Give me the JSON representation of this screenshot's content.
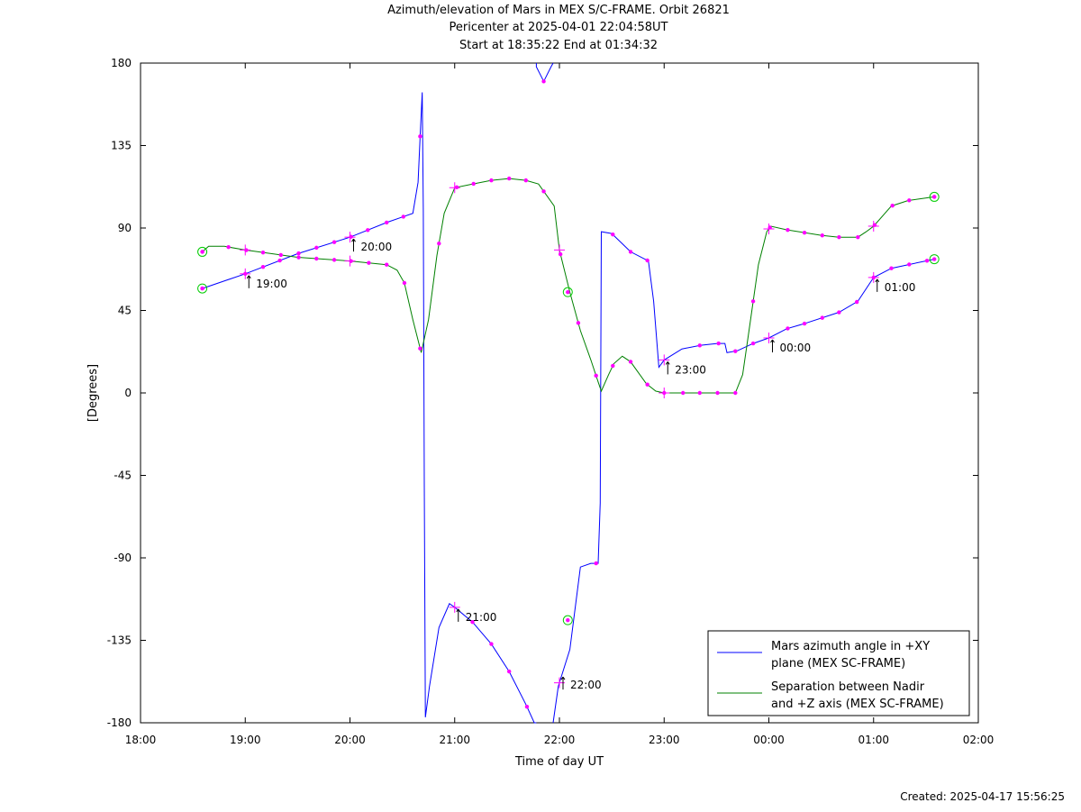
{
  "chart_data": {
    "type": "line",
    "title": "Azimuth/elevation of Mars in MEX S/C-FRAME.  Orbit 26821",
    "subtitle_1": "Pericenter at 2025-04-01 22:04:58UT",
    "subtitle_2": "Start at 18:35:22 End at 01:34:32",
    "xlabel": "Time of day UT",
    "ylabel": "[Degrees]",
    "xlim": [
      0,
      8
    ],
    "ylim": [
      -180,
      180
    ],
    "x_ticks": [
      {
        "v": 0,
        "label": "18:00"
      },
      {
        "v": 1,
        "label": "19:00"
      },
      {
        "v": 2,
        "label": "20:00"
      },
      {
        "v": 3,
        "label": "21:00"
      },
      {
        "v": 4,
        "label": "22:00"
      },
      {
        "v": 5,
        "label": "23:00"
      },
      {
        "v": 6,
        "label": "00:00"
      },
      {
        "v": 7,
        "label": "01:00"
      },
      {
        "v": 8,
        "label": "02:00"
      }
    ],
    "y_ticks": [
      {
        "v": 180,
        "label": "180"
      },
      {
        "v": 135,
        "label": "135"
      },
      {
        "v": 90,
        "label": "90"
      },
      {
        "v": 45,
        "label": "45"
      },
      {
        "v": 0,
        "label": "0"
      },
      {
        "v": -45,
        "label": "-45"
      },
      {
        "v": -90,
        "label": "-90"
      },
      {
        "v": -135,
        "label": "-135"
      },
      {
        "v": -180,
        "label": "-180"
      }
    ],
    "legend_position": "bottom-right",
    "colors": {
      "azimuth": "#0000ff",
      "separation": "#008000",
      "markers": "#ff00ff",
      "endpoints": "#00cc00"
    },
    "series": [
      {
        "name_line1": "Mars azimuth angle in +XY",
        "name_line2": "plane (MEX SC-FRAME)",
        "color": "#0000ff",
        "points": [
          [
            0.59,
            57
          ],
          [
            1,
            65
          ],
          [
            1.5,
            76
          ],
          [
            2,
            85
          ],
          [
            2.35,
            93
          ],
          [
            2.5,
            96
          ],
          [
            2.6,
            98
          ],
          [
            2.65,
            115
          ],
          [
            2.67,
            140
          ],
          [
            2.69,
            164
          ],
          [
            2.7,
            100
          ],
          [
            2.71,
            -50
          ],
          [
            2.72,
            -177
          ],
          [
            2.76,
            -160
          ],
          [
            2.85,
            -128
          ],
          [
            2.95,
            -115
          ],
          [
            3,
            -117
          ],
          [
            3.17,
            -125
          ],
          [
            3.35,
            -137
          ],
          [
            3.52,
            -152
          ],
          [
            3.68,
            -170
          ],
          [
            3.76,
            -180
          ],
          [
            3.78,
            178
          ],
          [
            3.85,
            170
          ],
          [
            3.92,
            178
          ],
          [
            3.94,
            -180
          ],
          [
            3.99,
            -160
          ],
          [
            4.1,
            -140
          ],
          [
            4.2,
            -95
          ],
          [
            4.3,
            -93
          ],
          [
            4.37,
            -93
          ],
          [
            4.39,
            -60
          ],
          [
            4.4,
            88
          ],
          [
            4.5,
            87
          ],
          [
            4.68,
            77
          ],
          [
            4.85,
            72
          ],
          [
            4.9,
            50
          ],
          [
            4.95,
            14
          ],
          [
            5,
            18
          ],
          [
            5.17,
            24
          ],
          [
            5.35,
            26
          ],
          [
            5.51,
            27
          ],
          [
            5.58,
            27
          ],
          [
            5.6,
            22
          ],
          [
            5.7,
            23
          ],
          [
            5.85,
            27
          ],
          [
            6,
            30
          ],
          [
            6.17,
            35
          ],
          [
            6.35,
            38
          ],
          [
            6.67,
            44
          ],
          [
            6.85,
            50
          ],
          [
            7,
            63
          ],
          [
            7.17,
            68
          ],
          [
            7.33,
            70
          ],
          [
            7.58,
            73
          ]
        ],
        "marker_x": [
          0.59,
          1,
          1.17,
          1.33,
          1.51,
          1.68,
          1.85,
          2.01,
          2.17,
          2.35,
          2.51,
          2.67,
          3.17,
          3.35,
          3.52,
          3.69,
          3.85,
          4.35,
          4.51,
          4.68,
          4.84,
          5.34,
          5.52,
          5.68,
          5.85,
          6.18,
          6.34,
          6.51,
          6.67,
          6.84,
          7,
          7.17,
          7.34,
          7.51
        ],
        "time_labels": [
          {
            "x": 1,
            "y": 65,
            "label": "19:00"
          },
          {
            "x": 2,
            "y": 85,
            "label": "20:00"
          },
          {
            "x": 3,
            "y": -117,
            "label": "21:00"
          },
          {
            "x": 4,
            "y": -154,
            "label": "22:00"
          },
          {
            "x": 5,
            "y": 18,
            "label": "23:00"
          },
          {
            "x": 6,
            "y": 30,
            "label": "00:00"
          },
          {
            "x": 7,
            "y": 63,
            "label": "01:00"
          }
        ],
        "endpoints": [
          [
            0.59,
            57
          ],
          [
            7.58,
            73
          ]
        ]
      },
      {
        "name_line1": "Separation between Nadir",
        "name_line2": "and +Z axis (MEX SC-FRAME)",
        "color": "#008000",
        "points": [
          [
            0.59,
            77
          ],
          [
            0.65,
            80
          ],
          [
            0.8,
            80
          ],
          [
            1,
            78
          ],
          [
            1.5,
            74
          ],
          [
            2,
            72
          ],
          [
            2.35,
            70
          ],
          [
            2.45,
            67
          ],
          [
            2.52,
            60
          ],
          [
            2.6,
            40
          ],
          [
            2.68,
            22
          ],
          [
            2.75,
            40
          ],
          [
            2.83,
            75
          ],
          [
            2.9,
            98
          ],
          [
            3,
            112
          ],
          [
            3.17,
            114
          ],
          [
            3.35,
            116
          ],
          [
            3.52,
            117
          ],
          [
            3.68,
            116
          ],
          [
            3.8,
            114
          ],
          [
            3.95,
            102
          ],
          [
            4,
            78
          ],
          [
            4.1,
            55
          ],
          [
            4.2,
            34
          ],
          [
            4.3,
            18
          ],
          [
            4.37,
            6
          ],
          [
            4.4,
            1
          ],
          [
            4.47,
            10
          ],
          [
            4.52,
            16
          ],
          [
            4.6,
            20
          ],
          [
            4.68,
            17
          ],
          [
            4.83,
            5
          ],
          [
            4.92,
            1
          ],
          [
            5,
            0
          ],
          [
            5.5,
            0
          ],
          [
            5.68,
            0
          ],
          [
            5.75,
            10
          ],
          [
            5.8,
            30
          ],
          [
            5.9,
            70
          ],
          [
            5.98,
            88
          ],
          [
            6.02,
            91
          ],
          [
            6.17,
            89
          ],
          [
            6.5,
            86
          ],
          [
            6.67,
            85
          ],
          [
            6.85,
            85
          ],
          [
            6.93,
            88
          ],
          [
            7,
            91
          ],
          [
            7.17,
            102
          ],
          [
            7.33,
            105
          ],
          [
            7.58,
            107
          ]
        ],
        "marker_x": [
          0.59,
          0.84,
          1.01,
          1.17,
          1.34,
          1.51,
          1.68,
          1.85,
          2.01,
          2.18,
          2.35,
          2.52,
          2.67,
          2.85,
          3.02,
          3.18,
          3.35,
          3.52,
          3.68,
          3.85,
          4.01,
          4.18,
          4.35,
          4.51,
          4.68,
          4.84,
          5,
          5.18,
          5.34,
          5.51,
          5.68,
          5.85,
          6.01,
          6.18,
          6.34,
          6.51,
          6.67,
          6.85,
          7.01,
          7.18,
          7.34,
          7.58
        ],
        "endpoints": [
          [
            0.59,
            77
          ],
          [
            4.08,
            55
          ],
          [
            4.08,
            -124
          ],
          [
            7.58,
            107
          ]
        ]
      }
    ],
    "created_label": "Created: 2025-04-17 15:56:25"
  }
}
